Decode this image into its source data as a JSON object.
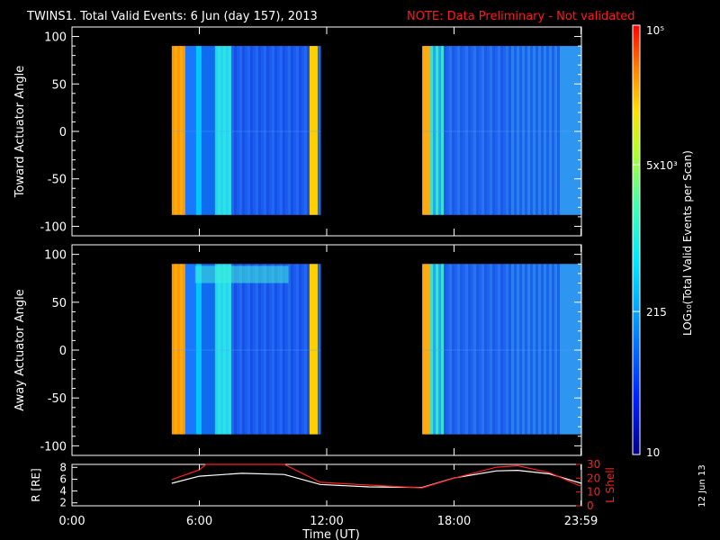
{
  "title_main": "TWINS1. Total Valid Events:  6 Jun (day 157), 2013",
  "title_note": "NOTE: Data Preliminary - Not validated",
  "colors": {
    "background": "#000000",
    "axis": "#ffffff",
    "note": "#ff1a1a",
    "r_line": "#ffffff",
    "lshell_line": "#ff2020"
  },
  "chart_data": [
    {
      "type": "heatmap",
      "panel": "toward",
      "ylabel": "Toward Actuator Angle",
      "yticks": [
        100,
        50,
        0,
        -50,
        -100
      ],
      "ylim": [
        -110,
        110
      ],
      "xlim_hours": [
        0,
        24
      ],
      "data_angle_range": [
        -88,
        90
      ],
      "segments": [
        {
          "start_hours": 4.7,
          "end_hours": 11.7
        },
        {
          "start_hours": 16.5,
          "end_hours": 24.0
        }
      ]
    },
    {
      "type": "heatmap",
      "panel": "away",
      "ylabel": "Away Actuator Angle",
      "yticks": [
        100,
        50,
        0,
        -50,
        -100
      ],
      "ylim": [
        -110,
        110
      ],
      "xlim_hours": [
        0,
        24
      ],
      "data_angle_range": [
        -88,
        90
      ],
      "segments": [
        {
          "start_hours": 4.7,
          "end_hours": 11.7
        },
        {
          "start_hours": 16.5,
          "end_hours": 24.0
        }
      ]
    },
    {
      "type": "line",
      "panel": "orbit",
      "ylabel_left": "R [RE]",
      "ylabel_right": "L Shell",
      "yticks_left": [
        8,
        6,
        4,
        2
      ],
      "ylim_left": [
        1.5,
        8.5
      ],
      "yticks_right": [
        30,
        20,
        10,
        0
      ],
      "ylim_right": [
        0,
        30
      ],
      "series": [
        {
          "name": "R",
          "axis": "left",
          "x": [
            4.7,
            6.0,
            8.0,
            10.0,
            11.7,
            14.0,
            16.5,
            18.0,
            20.0,
            21.0,
            22.5,
            24.0
          ],
          "y": [
            5.3,
            6.5,
            7.0,
            6.8,
            5.1,
            4.7,
            4.6,
            6.2,
            7.4,
            7.5,
            6.9,
            5.3
          ]
        },
        {
          "name": "L Shell",
          "axis": "right",
          "x": [
            4.7,
            6.0,
            6.3,
            10.0,
            11.7,
            14.0,
            16.5,
            18.0,
            20.0,
            21.0,
            22.5,
            24.0
          ],
          "y": [
            19,
            26,
            30,
            30,
            17,
            15,
            13,
            20,
            28,
            29,
            24,
            14
          ]
        }
      ]
    }
  ],
  "xaxis": {
    "label": "Time (UT)",
    "ticks": [
      {
        "hours": 0,
        "label": "0:00"
      },
      {
        "hours": 6,
        "label": "6:00"
      },
      {
        "hours": 12,
        "label": "12:00"
      },
      {
        "hours": 18,
        "label": "18:00"
      },
      {
        "hours": 23.98,
        "label": "23:59"
      }
    ]
  },
  "colorbar": {
    "label": "LOG₁₀(Total Valid Events per Scan)",
    "ticks": [
      {
        "value": 100000,
        "label": "10⁵"
      },
      {
        "value": 5000,
        "label": "5x10³"
      },
      {
        "value": 215,
        "label": "215"
      },
      {
        "value": 10,
        "label": "10"
      }
    ],
    "range": [
      10,
      100000
    ]
  },
  "date_stamp": "12 Jun 13"
}
